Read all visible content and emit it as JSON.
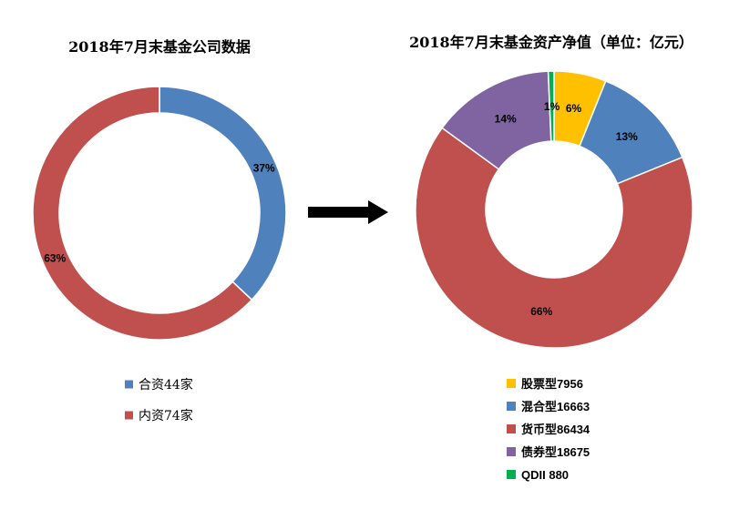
{
  "chart_data": [
    {
      "type": "pie",
      "title": "2018年7月末基金公司数据",
      "categories": [
        "合资44家",
        "内资74家"
      ],
      "values": [
        37,
        63
      ],
      "data_labels": [
        "37%",
        "63%"
      ],
      "colors": [
        "#4F81BD",
        "#C0504D"
      ],
      "legend_position": "bottom"
    },
    {
      "type": "pie",
      "title": "2018年7月末基金资产净值（单位：亿元）",
      "categories": [
        "股票型7956",
        "混合型16663",
        "货币型86434",
        "债券型18675",
        "QDII 880"
      ],
      "values": [
        7956,
        16663,
        86434,
        18675,
        880
      ],
      "data_labels": [
        "6%",
        "13%",
        "66%",
        "14%",
        "1%"
      ],
      "colors": [
        "#FFC000",
        "#4F81BD",
        "#C0504D",
        "#8064A2",
        "#00B050"
      ],
      "legend_position": "bottom"
    }
  ]
}
